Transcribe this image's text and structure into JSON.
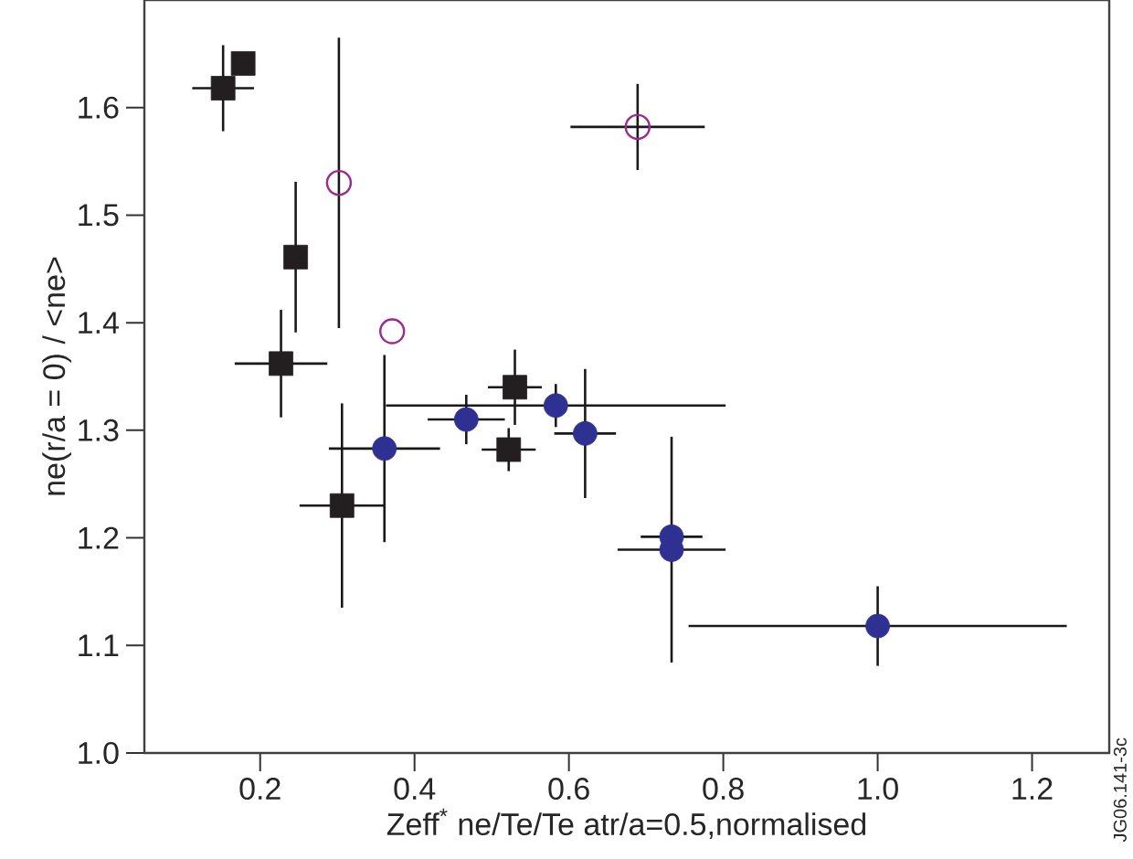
{
  "chart_data": {
    "type": "scatter",
    "xlabel": "Zeff$^{*}$ ne/Te/Te atr/a=0.5,normalised",
    "ylabel": "ne(r/a = 0) / <ne>",
    "annotations": [
      "JG06.141-3c"
    ],
    "xlim": [
      0.05,
      1.3
    ],
    "ylim": [
      1.0,
      1.7
    ],
    "xticks": [
      {
        "value": 0.2,
        "label": "0.2"
      },
      {
        "value": 0.4,
        "label": "0.4"
      },
      {
        "value": 0.6,
        "label": "0.6"
      },
      {
        "value": 0.8,
        "label": "0.8"
      },
      {
        "value": 1.0,
        "label": "1.0"
      },
      {
        "value": 1.2,
        "label": "1.2"
      }
    ],
    "yticks": [
      {
        "value": 1.0,
        "label": "1.0"
      },
      {
        "value": 1.1,
        "label": "1.1"
      },
      {
        "value": 1.2,
        "label": "1.2"
      },
      {
        "value": 1.3,
        "label": "1.3"
      },
      {
        "value": 1.4,
        "label": "1.4"
      },
      {
        "value": 1.5,
        "label": "1.5"
      },
      {
        "value": 1.6,
        "label": "1.6"
      }
    ],
    "series": [
      {
        "color": "#231f20",
        "marker": "square",
        "x": [
          0.152,
          0.178,
          0.246,
          0.227,
          0.53,
          0.522,
          0.306
        ],
        "values": [
          1.618,
          1.641,
          1.461,
          1.362,
          1.34,
          1.282,
          1.23
        ],
        "errors": [
          0.04,
          null,
          0.07,
          0.05,
          0.035,
          0.02,
          0.095
        ],
        "xerrors": [
          0.04,
          null,
          null,
          0.06,
          0.035,
          0.035,
          0.055
        ]
      },
      {
        "color": "#9b2a8f",
        "marker": "circle",
        "x": [
          0.302,
          0.371,
          0.689
        ],
        "values": [
          1.53,
          1.392,
          1.582
        ],
        "errors": [
          0.135,
          null,
          0.04
        ],
        "xerrors": [
          null,
          null,
          0.087
        ]
      },
      {
        "color": "#2e3192",
        "marker": "circle",
        "x": [
          0.361,
          0.467,
          0.583,
          0.621,
          0.733,
          0.733,
          1.0
        ],
        "values": [
          1.283,
          1.31,
          1.323,
          1.297,
          1.201,
          1.189,
          1.118
        ],
        "errors": [
          0.087,
          0.023,
          0.02,
          0.06,
          null,
          0.105,
          0.037
        ],
        "xerrors": [
          0.072,
          0.05,
          0.22,
          0.04,
          0.04,
          0.07,
          0.245
        ]
      }
    ]
  }
}
